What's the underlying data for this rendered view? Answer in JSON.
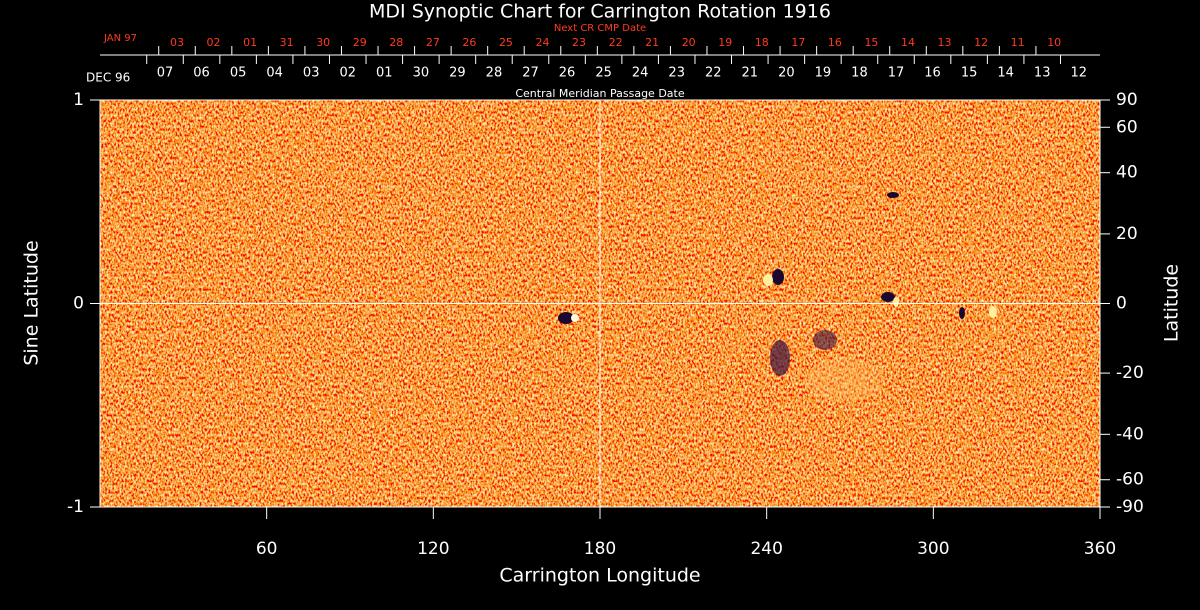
{
  "chart_data": {
    "type": "image",
    "title": "MDI Synoptic Chart for Carrington Rotation 1916",
    "xlabel": "Carrington Longitude",
    "ylabel": "Sine Latitude",
    "y2label": "Latitude",
    "xlim": [
      0,
      360
    ],
    "xticks": [
      60,
      120,
      180,
      240,
      300,
      360
    ],
    "ylim": [
      -1,
      1
    ],
    "yticks": [
      -1,
      0,
      1
    ],
    "y2lim": [
      -90,
      90
    ],
    "y2_scale": "sine",
    "y2ticks": [
      90,
      60,
      40,
      20,
      0,
      -20,
      -40,
      -60,
      -90
    ],
    "crosshair": {
      "x": 180,
      "y": 0
    },
    "top_axis": {
      "label": "Central Meridian Passage Date",
      "month": "DEC 96",
      "color": "#ffffff",
      "dates": [
        "07",
        "06",
        "05",
        "04",
        "03",
        "02",
        "01",
        "30",
        "29",
        "28",
        "27",
        "26",
        "25",
        "24",
        "23",
        "22",
        "21",
        "20",
        "19",
        "18",
        "17",
        "16",
        "15",
        "14",
        "13",
        "12"
      ]
    },
    "top_axis2": {
      "label": "Next CR CMP Date",
      "month": "JAN 97",
      "color": "#ff3b1f",
      "dates": [
        "03",
        "02",
        "01",
        "31",
        "30",
        "29",
        "28",
        "27",
        "26",
        "25",
        "24",
        "23",
        "22",
        "21",
        "20",
        "19",
        "18",
        "17",
        "16",
        "15",
        "14",
        "13",
        "12",
        "11",
        "10"
      ]
    }
  }
}
